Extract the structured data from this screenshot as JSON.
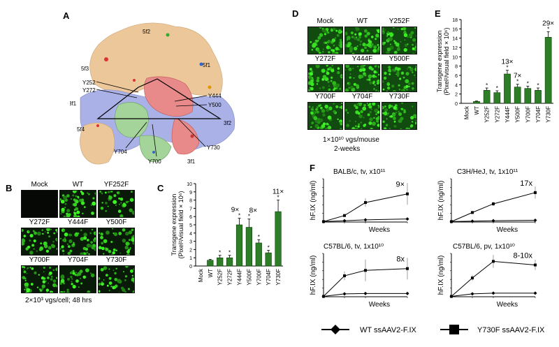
{
  "panel_labels": {
    "A": "A",
    "B": "B",
    "C": "C",
    "D": "D",
    "E": "E",
    "F": "F"
  },
  "panelA": {
    "axis_labels": [
      "5f2",
      "5f1",
      "5f3",
      "3f1",
      "3f2",
      "3f1",
      "5f4"
    ],
    "residue_labels": [
      "Y252",
      "Y272",
      "Y444",
      "Y500",
      "Y730",
      "Y700",
      "Y704"
    ]
  },
  "panelB": {
    "cells": [
      "Mock",
      "WT",
      "YF252F",
      "Y272F",
      "Y444F",
      "Y500F",
      "Y700F",
      "Y704F",
      "Y730F"
    ],
    "caption": "2×10³ vgs/cell; 48 hrs"
  },
  "panelD": {
    "cells": [
      "Mock",
      "WT",
      "Y252F",
      "Y272F",
      "Y444F",
      "Y500F",
      "Y700F",
      "Y704F",
      "Y730F"
    ],
    "caption_line1": "1×10¹⁰ vgs/mouse",
    "caption_line2": "2-weeks"
  },
  "chart_data": [
    {
      "id": "C",
      "type": "bar",
      "ylabel_line1": "Transgene expression",
      "ylabel_line2": "(Pixel²/visual field × 10⁶)",
      "categories": [
        "Mock",
        "WT",
        "Y252F",
        "Y272F",
        "Y444F",
        "Y500F",
        "Y700F",
        "Y704F",
        "Y730F"
      ],
      "values": [
        0,
        0.7,
        1.0,
        1.0,
        5.0,
        4.7,
        2.8,
        1.6,
        6.6
      ],
      "errors": [
        0,
        0.1,
        0.3,
        0.3,
        0.8,
        1.0,
        0.4,
        0.3,
        1.4
      ],
      "star": [
        false,
        false,
        true,
        true,
        true,
        true,
        true,
        true,
        true
      ],
      "yticks": [
        0,
        1,
        2,
        3,
        4,
        5,
        6,
        7,
        8,
        9,
        10
      ],
      "ylim": [
        0,
        10
      ],
      "annotations": [
        {
          "category": "Y444F",
          "text": "9×"
        },
        {
          "category": "Y500F",
          "text": "8×"
        },
        {
          "category": "Y730F",
          "text": "11×"
        }
      ]
    },
    {
      "id": "E",
      "type": "bar",
      "ylabel_line1": "Transgene expression",
      "ylabel_line2": "(Pixel²/visual field × 10⁶)",
      "categories": [
        "Mock",
        "WT",
        "Y252F",
        "Y272F",
        "Y444F",
        "Y500F",
        "Y700F",
        "Y704F",
        "Y730F"
      ],
      "values": [
        0,
        0.4,
        2.8,
        2.3,
        6.3,
        3.5,
        3.2,
        2.8,
        14.2
      ],
      "errors": [
        0,
        0.1,
        0.5,
        0.4,
        0.8,
        0.6,
        0.5,
        0.5,
        1.2
      ],
      "star": [
        false,
        false,
        true,
        true,
        true,
        true,
        true,
        true,
        true
      ],
      "yticks": [
        0,
        2,
        4,
        6,
        8,
        10,
        12,
        14,
        16,
        18
      ],
      "ylim": [
        0,
        18
      ],
      "annotations": [
        {
          "category": "Y444F",
          "text": "13×"
        },
        {
          "category": "Y500F",
          "text": "7×"
        },
        {
          "category": "Y730F",
          "text": "29×"
        }
      ]
    },
    {
      "id": "F1",
      "type": "line",
      "title": "BALB/c, tv, x10¹¹",
      "xlabel": "Weeks",
      "ylabel": "hF.IX (ng/ml)",
      "x": [
        0,
        1,
        2,
        4
      ],
      "series": [
        {
          "values": [
            1,
            3,
            5,
            7
          ],
          "marker": "diamond"
        },
        {
          "values": [
            1,
            15,
            45,
            65
          ],
          "errors": [
            0,
            3,
            10,
            25
          ],
          "marker": "square"
        }
      ],
      "ylim": [
        0,
        100
      ],
      "annotation": "9×"
    },
    {
      "id": "F2",
      "type": "line",
      "title": "C3H/HeJ, tv, 1x10¹¹",
      "xlabel": "Weeks",
      "ylabel": "hF.IX (ng/ml)",
      "x": [
        0,
        1,
        2,
        4
      ],
      "series": [
        {
          "values": [
            1,
            2,
            3,
            4
          ],
          "marker": "diamond"
        },
        {
          "values": [
            1,
            22,
            42,
            68
          ],
          "errors": [
            0,
            3,
            5,
            14
          ],
          "marker": "square"
        }
      ],
      "ylim": [
        0,
        100
      ],
      "annotation": "17x"
    },
    {
      "id": "F3",
      "type": "line",
      "title": "C57BL/6, tv, 1x10¹⁰",
      "xlabel": "Weeks",
      "ylabel": "hF.IX (ng/ml)",
      "x": [
        0,
        1,
        2,
        4
      ],
      "series": [
        {
          "values": [
            1,
            8,
            9,
            9
          ],
          "marker": "diamond"
        },
        {
          "values": [
            1,
            58,
            73,
            78
          ],
          "errors": [
            0,
            12,
            30,
            30
          ],
          "marker": "square"
        }
      ],
      "ylim": [
        0,
        120
      ],
      "annotation": "8x"
    },
    {
      "id": "F4",
      "type": "line",
      "title": "C57BL/6, pv, 1x10¹⁰",
      "xlabel": "Weeks",
      "ylabel": "hF.IX (ng/ml)",
      "x": [
        0,
        1,
        2,
        4
      ],
      "series": [
        {
          "values": [
            1,
            8,
            10,
            10
          ],
          "marker": "diamond"
        },
        {
          "values": [
            1,
            52,
            98,
            88
          ],
          "errors": [
            0,
            8,
            18,
            14
          ],
          "marker": "square"
        }
      ],
      "ylim": [
        0,
        120
      ],
      "annotation": "8-10x"
    }
  ],
  "legend": {
    "wt": "WT ssAAV2-F.IX",
    "y730f": "Y730F ssAAV2-F.IX"
  },
  "colors": {
    "bar": "#2e7d27",
    "bar_edge": "#0d3d0a",
    "surface_tan": "#ecc79a",
    "surface_blue": "#a9b1e6",
    "surface_pink": "#e98a8a",
    "surface_green": "#a4d49a"
  }
}
